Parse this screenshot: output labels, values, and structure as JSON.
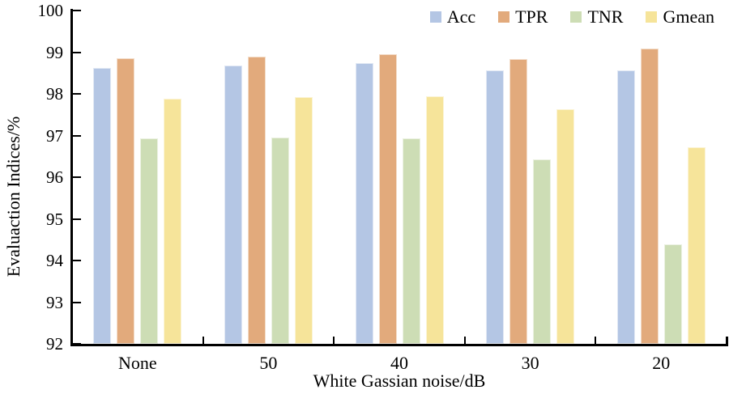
{
  "chart_data": {
    "type": "bar",
    "categories": [
      "None",
      "50",
      "40",
      "30",
      "20"
    ],
    "xlabel": "White Gassian noise/dB",
    "ylabel": "Evaluaction Indices/%",
    "ylim": [
      92,
      100
    ],
    "y_ticks": [
      92,
      93,
      94,
      95,
      96,
      97,
      98,
      99,
      100
    ],
    "grid": false,
    "legend_position": "top-right",
    "series": [
      {
        "name": "Acc",
        "color": "#b4c6e4",
        "values": [
          98.62,
          98.67,
          98.73,
          98.57,
          98.57
        ]
      },
      {
        "name": "TPR",
        "color": "#e2aa7c",
        "values": [
          98.85,
          98.9,
          98.96,
          98.84,
          99.09
        ]
      },
      {
        "name": "TNR",
        "color": "#cdddb5",
        "values": [
          96.94,
          96.95,
          96.94,
          96.42,
          94.39
        ]
      },
      {
        "name": "Gmean",
        "color": "#f6e49a",
        "values": [
          97.88,
          97.92,
          97.95,
          97.63,
          96.71
        ]
      }
    ],
    "axis_color": "#000000"
  }
}
